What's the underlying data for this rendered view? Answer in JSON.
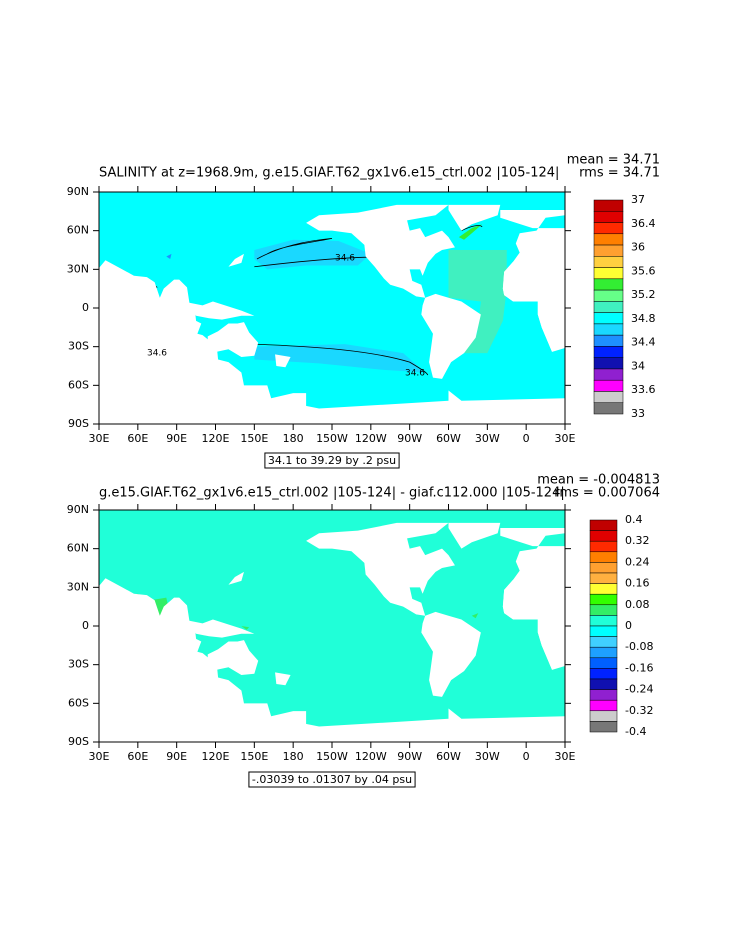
{
  "map": {
    "lonlim": [
      30,
      390
    ],
    "latlim": [
      -90,
      90
    ],
    "lat_ticks": [
      {
        "value": 90,
        "label": "90N"
      },
      {
        "value": 60,
        "label": "60N"
      },
      {
        "value": 30,
        "label": "30N"
      },
      0,
      {
        "value": -30,
        "label": "30S"
      },
      {
        "value": -60,
        "label": "60S"
      },
      {
        "value": -90,
        "label": "90S"
      }
    ],
    "lon_ticks": [
      {
        "value": 30,
        "label": "30E"
      },
      {
        "value": 60,
        "label": "60E"
      },
      {
        "value": 90,
        "label": "90E"
      },
      {
        "value": 120,
        "label": "120E"
      },
      {
        "value": 150,
        "label": "150E"
      },
      180,
      {
        "value": 210,
        "label": "150W"
      },
      {
        "value": 240,
        "label": "120W"
      },
      {
        "value": 270,
        "label": "90W"
      },
      {
        "value": 300,
        "label": "60W"
      },
      {
        "value": 330,
        "label": "30W"
      },
      {
        "value": 360,
        "label": "0"
      },
      {
        "value": 390,
        "label": "30E"
      }
    ]
  },
  "panels": [
    {
      "title": "SALINITY at z=1968.9m, g.e15.GIAF.T62_gx1v6.e15_ctrl.002 |105-124|",
      "mean": "mean = 34.71",
      "rms": "rms = 34.71",
      "range_label": "34.1 to 39.29 by .2 psu",
      "ocean_color": "#00ffff",
      "contour_labels": [
        34.6,
        34.6,
        34.6
      ],
      "colorbar": {
        "colors": [
          "#c00000",
          "#e00000",
          "#ff2a00",
          "#ff7f00",
          "#ffa030",
          "#ffd040",
          "#ffff33",
          "#33ee33",
          "#66ff88",
          "#40f0c0",
          "#00ffff",
          "#1ad8ff",
          "#1e90ff",
          "#0022ff",
          "#1010b0",
          "#9020d0",
          "#ff00ff",
          "#cccccc",
          "#777777"
        ],
        "labels": [
          37,
          36.4,
          36,
          35.6,
          35.2,
          34.8,
          34.4,
          34,
          33.6,
          33
        ]
      }
    },
    {
      "title": "g.e15.GIAF.T62_gx1v6.e15_ctrl.002 |105-124| - giaf.c112.000 |105-124|",
      "mean": "mean = -0.004813",
      "rms": "rms = 0.007064",
      "range_label": "-.03039 to .01307 by .04 psu",
      "ocean_color": "#20ffd8",
      "contour_labels": [],
      "colorbar": {
        "colors": [
          "#c00000",
          "#e00000",
          "#ff2a00",
          "#ff7f00",
          "#ffa030",
          "#ffb040",
          "#ffff33",
          "#33ff00",
          "#33ee66",
          "#20ffd8",
          "#00ffff",
          "#40d0ff",
          "#1ea0ff",
          "#0060ff",
          "#0022ff",
          "#1010b0",
          "#9020d0",
          "#ff00ff",
          "#cccccc",
          "#777777"
        ],
        "labels": [
          0.4,
          0.32,
          0.24,
          0.16,
          0.08,
          0,
          -0.08,
          -0.16,
          -0.24,
          -0.32,
          -0.4
        ]
      }
    }
  ]
}
